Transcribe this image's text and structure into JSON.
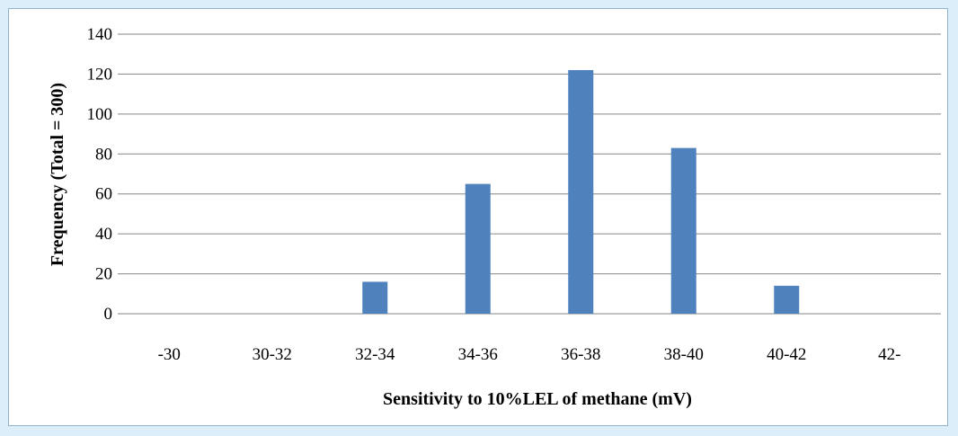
{
  "chart_data": {
    "type": "bar",
    "categories": [
      "-30",
      "30-32",
      "32-34",
      "34-36",
      "36-38",
      "38-40",
      "40-42",
      "42-"
    ],
    "series": [
      {
        "values": [
          0,
          0,
          16,
          65,
          122,
          83,
          14,
          0
        ]
      }
    ],
    "xlabel": "Sensitivity to 10%LEL of methane (mV)",
    "ylabel": "Frequency (Total = 300)",
    "ylim": [
      0,
      140
    ],
    "yticks": [
      0,
      20,
      40,
      60,
      80,
      100,
      120,
      140
    ],
    "grid": true,
    "legend": "none",
    "bar_color": "#4f81bd",
    "grid_color": "#868686"
  }
}
